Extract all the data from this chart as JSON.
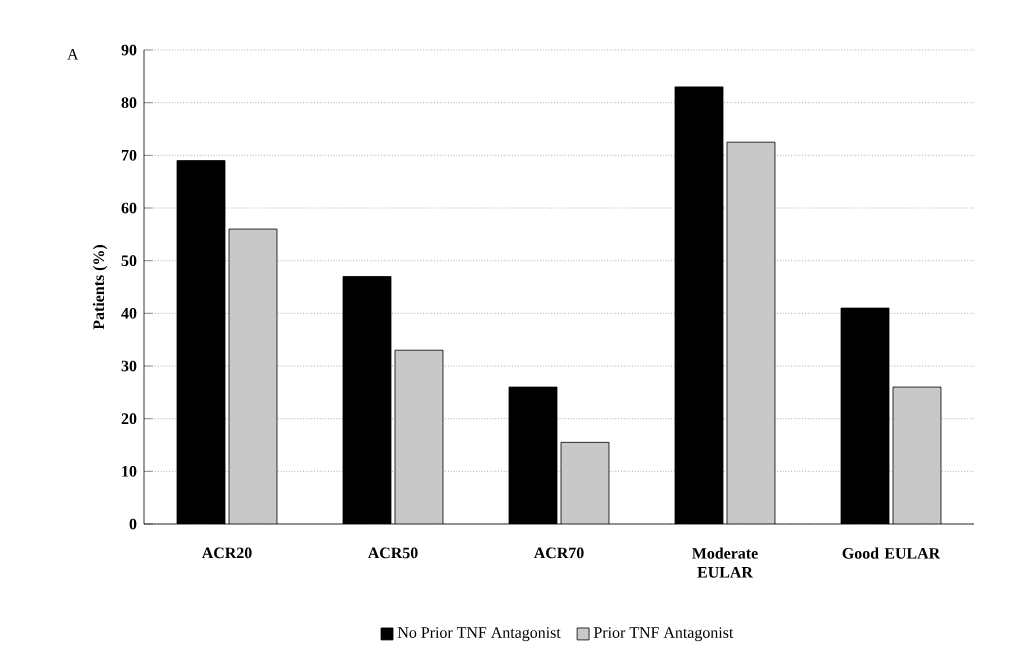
{
  "chart_data": {
    "type": "bar",
    "ylabel": "Patients (%)",
    "annotations": [
      "A"
    ],
    "categories": [
      "ACR20",
      "ACR50",
      "ACR70",
      "Moderate EULAR",
      "Good EULAR"
    ],
    "series": [
      {
        "name": "No Prior TNF Antagonist",
        "color": "#000000",
        "values": [
          69,
          47,
          26,
          83,
          41
        ]
      },
      {
        "name": "Prior TNF Antagonist",
        "color": "#c8c8c8",
        "values": [
          56,
          33,
          15.5,
          72.5,
          26
        ]
      }
    ],
    "ylim": [
      0,
      90
    ],
    "yticks": [
      0,
      10,
      20,
      30,
      40,
      50,
      60,
      70,
      80,
      90
    ],
    "grid": "y",
    "legend": "bottom"
  }
}
